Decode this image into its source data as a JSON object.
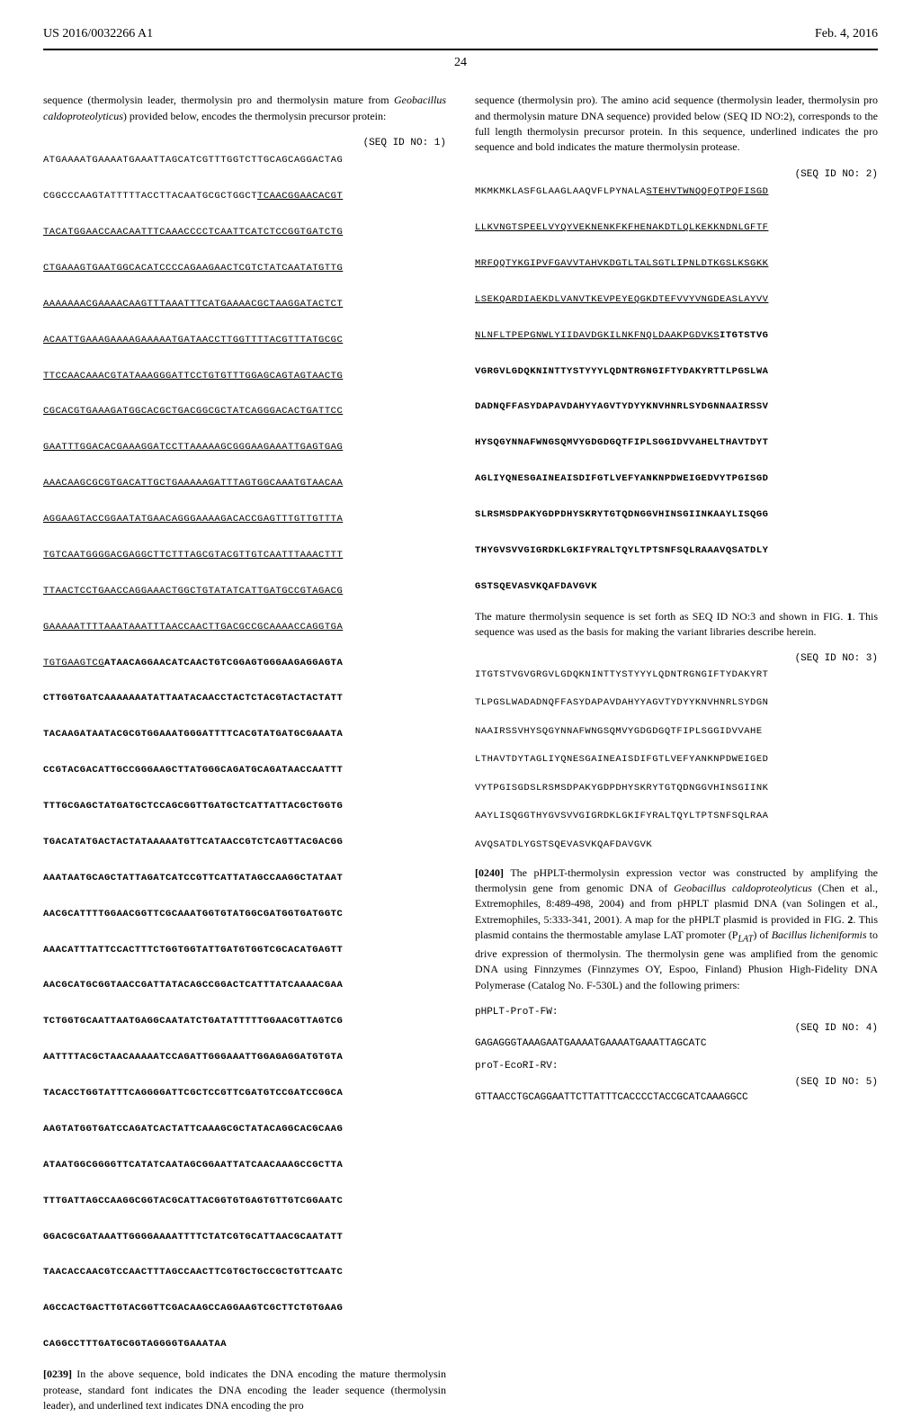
{
  "header": {
    "pub_number": "US 2016/0032266 A1",
    "pub_date": "Feb. 4, 2016",
    "page_number": "24"
  },
  "left": {
    "intro": "sequence (thermolysin leader, thermolysin pro and thermolysin mature from ",
    "intro_italic": "Geobacillus caldoproteolyticus",
    "intro2": ") provided below, encodes the thermolysin precursor protein:",
    "seq1_label": "(SEQ ID NO: 1)",
    "seq1_plain": "ATGAAAATGAAAATGAAATTAGCATCGTTTGGTCTTGCAGCAGGACTAG\n\nCGGCCCAAGTATTTTTACCTTACAATGCGCTGGCT",
    "seq1_underline": "TCAACGGAACACGT\n\nTACATGGAACCAACAATTTCAAACCCCTCAATTCATCTCCGGTGATCTG\n\nCTGAAAGTGAATGGCACATCCCCAGAAGAACTCGTCTATCAATATGTTG\n\nAAAAAAACGAAAACAAGTTTAAATTTCATGAAAACGCTAAGGATACTCT\n\nACAATTGAAAGAAAAGAAAAATGATAACCTTGGTTTTACGTTTATGCGC\n\nTTCCAACAAACGTATAAAGGGATTCCTGTGTTTGGAGCAGTAGTAACTG\n\nCGCACGTGAAAGATGGCACGCTGACGGCGCTATCAGGGACACTGATTCC\n\nGAATTTGGACACGAAAGGATCCTTAAAAAGCGGGAAGAAATTGAGTGAG\n\nAAACAAGCGCGTGACATTGCTGAAAAAGATTTAGTGGCAAATGTAACAA\n\nAGGAAGTACCGGAATATGAACAGGGAAAAGACACCGAGTTTGTTGTTTA\n\nTGTCAATGGGGACGAGGCTTCTTTAGCGTACGTTGTCAATTTAAACTTT\n\nTTAACTCCTGAACCAGGAAACTGGCTGTATATCATTGATGCCGTAGACG\n\nGAAAAATTTTAAATAAATTTAACCAACTTGACGCCGCAAAACCAGGTGA\n\nTGTGAAGTCG",
    "seq1_bold": "ATAACAGGAACATCAACTGTCGGAGTGGGAAGAGGAGTA\n\nCTTGGTGATCAAAAAAATATTAATACAACCTACTCTACGTACTACTATT\n\nTACAAGATAATACGCGTGGAAATGGGATTTTCACGTATGATGCGAAATA\n\nCCGTACGACATTGCCGGGAAGCTTATGGGCAGATGCAGATAACCAATTT\n\nTTTGCGAGCTATGATGCTCCAGCGGTTGATGCTCATTATTACGCTGGTG\n\nTGACATATGACTACTATAAAAATGTTCATAACCGTCTCAGTTACGACGG\n\nAAATAATGCAGCTATTAGATCATCCGTTCATTATAGCCAAGGCTATAAT\n\nAACGCATTTTGGAACGGTTCGCAAATGGTGTATGGCGATGGTGATGGTC\n\nAAACATTTATTCCACTTTCTGGTGGTATTGATGTGGTCGCACATGAGTT\n\nAACGCATGCGGTAACCGATTATACAGCCGGACTCATTTATCAAAACGAA\n\nTCTGGTGCAATTAATGAGGCAATATCTGATATTTTTGGAACGTTAGTCG\n\nAATTTTACGCTAACAAAAATCCAGATTGGGAAATTGGAGAGGATGTGTA\n\nTACACCTGGTATTTCAGGGGATTCGCTCCGTTCGATGTCCGATCCGGCA\n\nAAGTATGGTGATCCAGATCACTATTCAAAGCGCTATACAGGCACGCAAG\n\nATAATGGCGGGGTTCATATCAATAGCGGAATTATCAACAAAGCCGCTTA\n\nTTTGATTAGCCAAGGCGGTACGCATTACGGTGTGAGTGTTGTCGGAATC\n\nGGACGCGATAAATTGGGGAAAATTTTCTATCGTGCATTAACGCAATATT\n\nTAACACCAACGTCCAACTTTAGCCAACTTCGTGCTGCCGCTGTTCAATC\n\nAGCCACTGACTTGTACGGTTCGACAAGCCAGGAAGTCGCTTCTGTGAAG\n\nCAGGCCTTTGATGCGGTAGGGGTGAAATAA",
    "para0239_num": "[0239]",
    "para0239": "   In the above sequence, bold indicates the DNA encoding the mature thermolysin protease, standard font indicates the DNA encoding the leader sequence (thermolysin leader), and underlined text indicates DNA encoding the pro"
  },
  "right": {
    "intro": "sequence (thermolysin pro). The amino acid sequence (thermolysin leader, thermolysin pro and thermolysin mature DNA sequence) provided below (SEQ ID NO:2), corresponds to the full length thermolysin precursor protein. In this sequence, underlined indicates the pro sequence and bold indicates the mature thermolysin protease.",
    "seq2_label": "(SEQ ID NO: 2)",
    "seq2_plain": "MKMKMKLASFGLAAGLAAQVFLPYNALA",
    "seq2_underline": "STEHVTWNQQFQTPQFISGD\n\nLLKVNGTSPEELVYQYVEKNENKFKFHENAKDTLQLKEKKNDNLGFTF\n\nMRFQQTYKGIPVFGAVVTAHVKDGTLTALSGTLIPNLDTKGSLKSGKK\n\nLSEKQARDIAEKDLVANVTKEVPEYEQGKDTEFVVYVNGDEASLAYVV\n\nNLNFLTPEPGNWLYIIDAVDGKILNKFNQLDAAKPGDVKS",
    "seq2_bold": "ITGTSTVG\n\nVGRGVLGDQKNINTTYSTYYYLQDNTRGNGIFTYDAKYRTTLPGSLWA\n\nDADNQFFASYDAPAVDAHYYAGVTYDYYKNVHNRLSYDGNNAAIRSSV\n\nHYSQGYNNAFWNGSQMVYGDGDGQTFIPLSGGIDVVAHELTHAVTDYT\n\nAGLIYQNESGAINEAISDIFGTLVEFYANKNPDWEIGEDVYTPGISGD\n\nSLRSMSDPAKYGDPDHYSKRYTGTQDNGGVHINSGIINKAAYLISQGG\n\nTHYGVSVVGIGRDKLGKIFYRALTQYLTPTSNFSQLRAAAVQSATDLY\n\nGSTSQEVASVKQAFDAVGVK",
    "mature_para": "The mature thermolysin sequence is set forth as SEQ ID NO:3 and shown in FIG. ",
    "mature_fig": "1",
    "mature_para2": ". This sequence was used as the basis for making the variant libraries describe herein.",
    "seq3_label": "(SEQ ID NO: 3)",
    "seq3": "ITGTSTVGVGRGVLGDQKNINTTYSTYYYLQDNTRGNGIFTYDAKYRT\n\nTLPGSLWADADNQFFASYDAPAVDAHYYAGVTYDYYKNVHNRLSYDGN\n\nNAAIRSSVHYSQGYNNAFWNGSQMVYGDGDGQTFIPLSGGIDVVAHE\n\nLTHAVTDYTAGLIYQNESGAINEAISDIFGTLVEFYANKNPDWEIGED\n\nVYTPGISGDSLRSMSDPAKYGDPDHYSKRYTGTQDNGGVHINSGIINK\n\nAAYLISQGGTHYGVSVVGIGRDKLGKIFYRALTQYLTPTSNFSQLRAA\n\nAVQSATDLYGSTSQEVASVKQAFDAVGVK",
    "para0240_num": "[0240]",
    "para0240_1": "   The pHPLT-thermolysin expression vector was constructed by amplifying the thermolysin gene from genomic DNA of ",
    "para0240_italic1": "Geobacillus caldoproteolyticus",
    "para0240_2": " (Chen et al., Extremophiles, 8:489-498, 2004) and from pHPLT plasmid DNA (van Solingen et al., Extremophiles, 5:333-341, 2001). A map for the pHPLT plasmid is provided in FIG. ",
    "para0240_fig": "2",
    "para0240_3": ". This plasmid contains the thermostable amylase LAT promoter (P",
    "para0240_sub": "LAT",
    "para0240_4": ") of ",
    "para0240_italic2": "Bacillus licheniformis",
    "para0240_5": " to drive expression of thermolysin. The thermolysin gene was amplified from the genomic DNA using Finnzymes (Finnzymes OY, Espoo, Finland) Phusion High-Fidelity DNA Polymerase (Catalog No. F-530L) and the following primers:",
    "primer1_name": "pHPLT-ProT-FW:",
    "primer1_label": "(SEQ ID NO: 4)",
    "primer1_seq": "GAGAGGGTAAAGAATGAAAATGAAAATGAAATTAGCATC",
    "primer2_name": "proT-EcoRI-RV:",
    "primer2_label": "(SEQ ID NO: 5)",
    "primer2_seq": "GTTAACCTGCAGGAATTCTTATTTCACCCCTACCGCATCAAAGGCC"
  }
}
